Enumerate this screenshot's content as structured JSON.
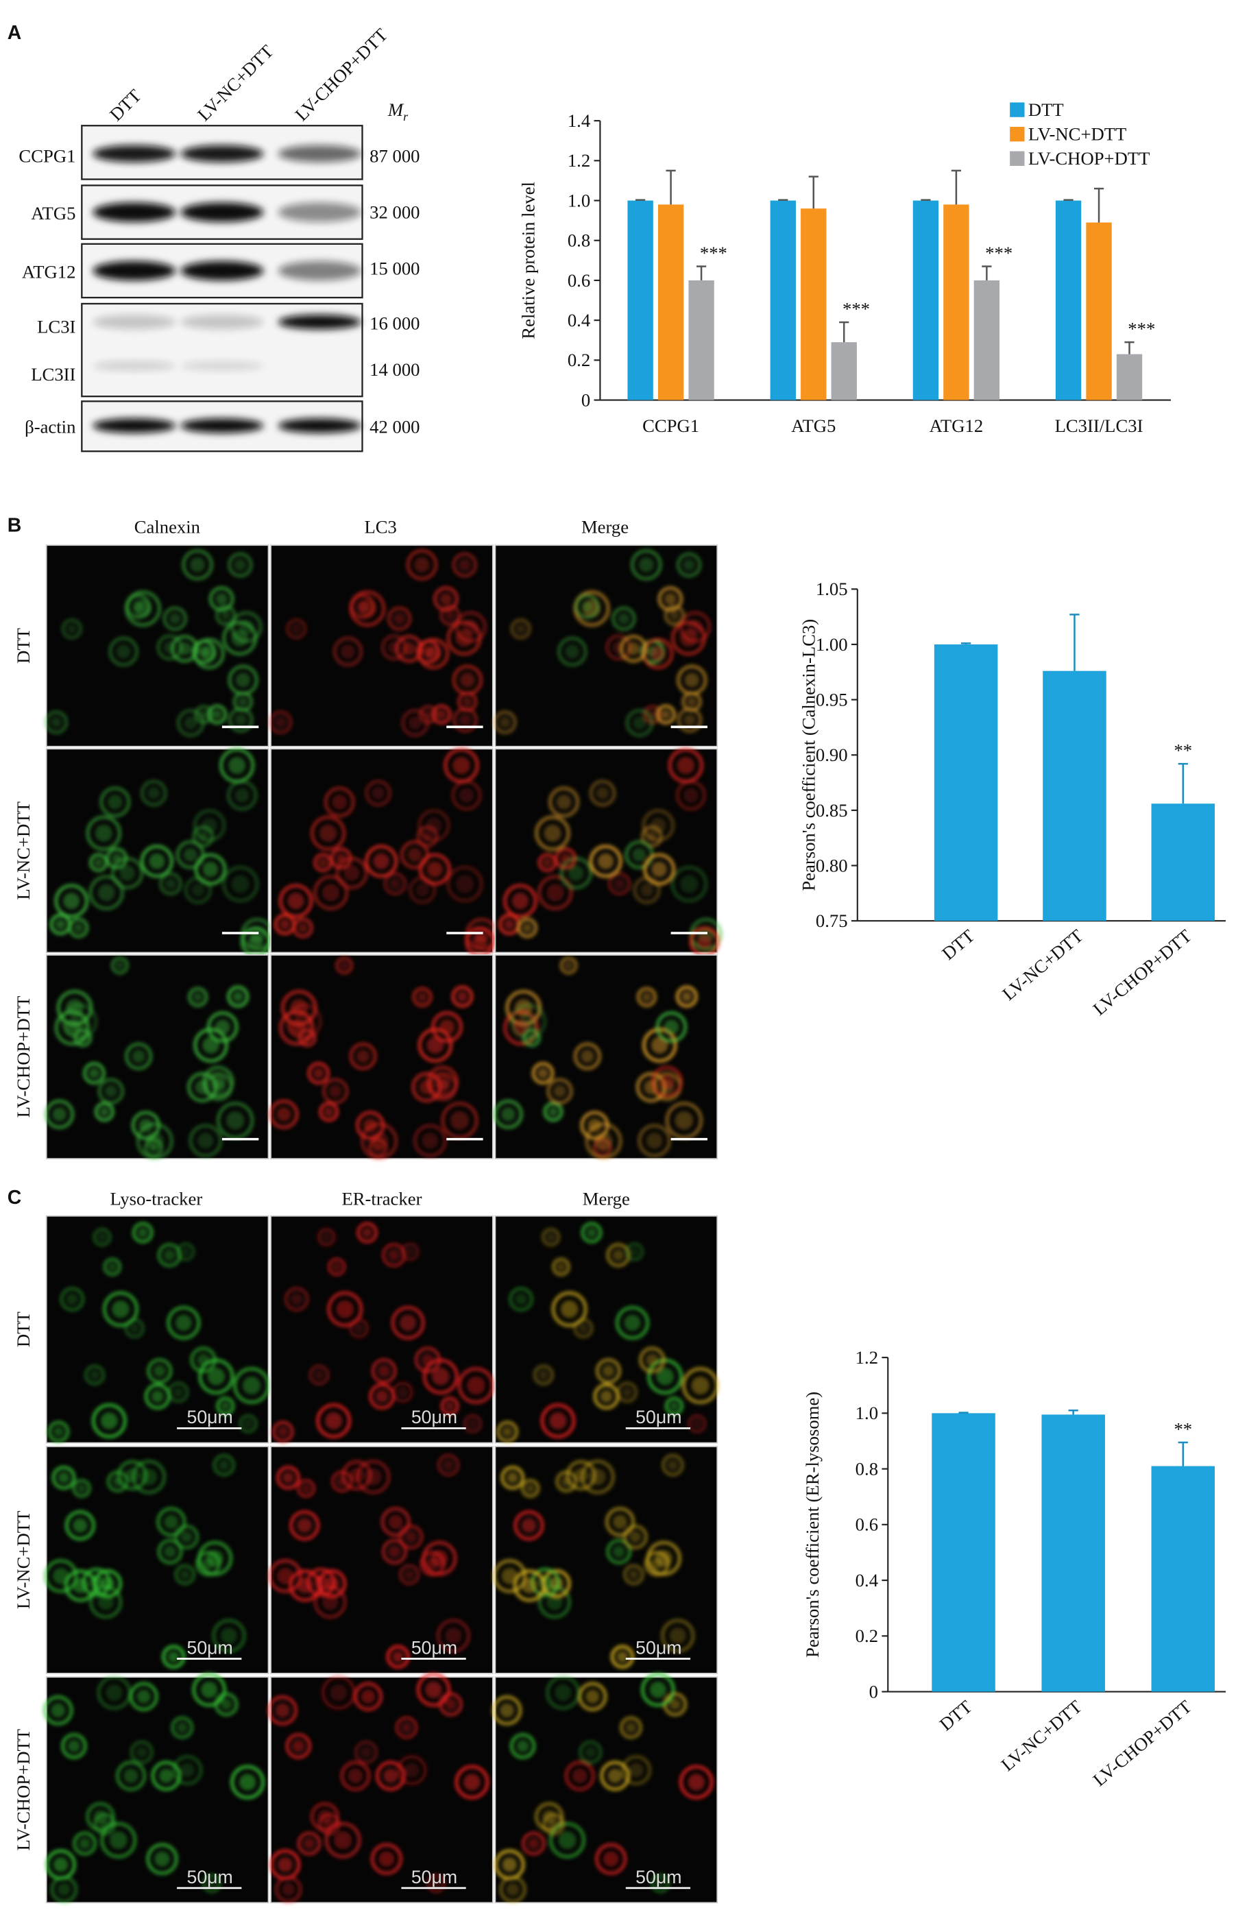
{
  "panel_labels": [
    "A",
    "B",
    "C"
  ],
  "blot": {
    "lanes": [
      "DTT",
      "LV-NC+DTT",
      "LV-CHOP+DTT"
    ],
    "mr_symbol": "M",
    "mr_subscript": "r",
    "proteins": [
      {
        "label": "CCPG1",
        "mr": "87 000"
      },
      {
        "label": "ATG5",
        "mr": "32 000"
      },
      {
        "label": "ATG12",
        "mr": "15 000"
      },
      {
        "label": "LC3I",
        "mr": "16 000"
      },
      {
        "label": "LC3II",
        "mr": "14 000"
      },
      {
        "label": "β-actin",
        "mr": "42 000"
      }
    ]
  },
  "imaging_b": {
    "columns": [
      "Calnexin",
      "LC3",
      "Merge"
    ],
    "rows": [
      "DTT",
      "LV-NC+DTT",
      "LV-CHOP+DTT"
    ]
  },
  "imaging_c": {
    "columns": [
      "Lyso-tracker",
      "ER-tracker",
      "Merge"
    ],
    "rows": [
      "DTT",
      "LV-NC+DTT",
      "LV-CHOP+DTT"
    ],
    "scale_bar": "50μm"
  },
  "chart_data": [
    {
      "type": "bar",
      "ylabel": "Relative protein level",
      "categories": [
        "CCPG1",
        "ATG5",
        "ATG12",
        "LC3II/LC3I"
      ],
      "series": [
        {
          "name": "DTT",
          "color": "#1ba1db",
          "values": [
            1.0,
            1.0,
            1.0,
            1.0
          ],
          "errors": [
            0.003,
            0.003,
            0.003,
            0.003
          ]
        },
        {
          "name": "LV-NC+DTT",
          "color": "#f7941d",
          "values": [
            0.98,
            0.96,
            0.98,
            0.89
          ],
          "errors": [
            0.17,
            0.16,
            0.17,
            0.17
          ]
        },
        {
          "name": "LV-CHOP+DTT",
          "color": "#a7a9ac",
          "values": [
            0.6,
            0.29,
            0.6,
            0.23
          ],
          "errors": [
            0.07,
            0.1,
            0.07,
            0.06
          ],
          "annotations": [
            "***",
            "***",
            "***",
            "***"
          ]
        }
      ],
      "ylim": [
        0,
        1.4
      ],
      "yticks": [
        0,
        0.2,
        0.4,
        0.6,
        0.8,
        {
          "value": 1,
          "label": "1.0"
        },
        1.2,
        1.4
      ],
      "legend": "upper right"
    },
    {
      "type": "bar",
      "ylabel": "Pearson's coefficient (Calnexin-LC3)",
      "categories": [
        "DTT",
        "LV-NC+DTT",
        "LV-CHOP+DTT"
      ],
      "series": [
        {
          "name": "Pearson's coefficient",
          "color": "#1fa3dc",
          "values": [
            1.0,
            0.976,
            0.856
          ],
          "errors": [
            0.001,
            0.051,
            0.036
          ],
          "annotations": [
            null,
            null,
            "**"
          ]
        }
      ],
      "ylim": [
        0.75,
        1.05
      ],
      "yticks": [
        0.75,
        {
          "value": 0.8,
          "label": "0.80"
        },
        0.85,
        {
          "value": 0.9,
          "label": "0.90"
        },
        0.95,
        {
          "value": 1,
          "label": "1.00"
        },
        1.05
      ]
    },
    {
      "type": "bar",
      "ylabel": "Pearson's coefficient (ER-lysosome)",
      "categories": [
        "DTT",
        "LV-NC+DTT",
        "LV-CHOP+DTT"
      ],
      "series": [
        {
          "name": "Pearson's coefficient",
          "color": "#1fa3dc",
          "values": [
            1.0,
            0.995,
            0.81
          ],
          "errors": [
            0.002,
            0.015,
            0.085
          ],
          "annotations": [
            null,
            null,
            "**"
          ]
        }
      ],
      "ylim": [
        0,
        1.2
      ],
      "yticks": [
        0,
        0.2,
        0.4,
        0.6,
        0.8,
        {
          "value": 1,
          "label": "1.0"
        },
        1.2
      ]
    }
  ]
}
